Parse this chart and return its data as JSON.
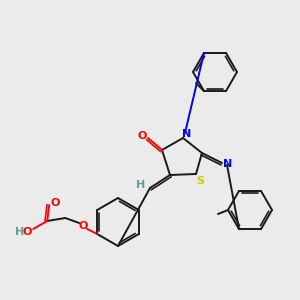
{
  "background_color": "#ebebeb",
  "atom_colors": {
    "O": "#ff0000",
    "N": "#0000ff",
    "S": "#cccc00",
    "H_label": "#5f9ea0",
    "C": "#1a1a1a"
  },
  "figsize": [
    3.0,
    3.0
  ],
  "dpi": 100
}
